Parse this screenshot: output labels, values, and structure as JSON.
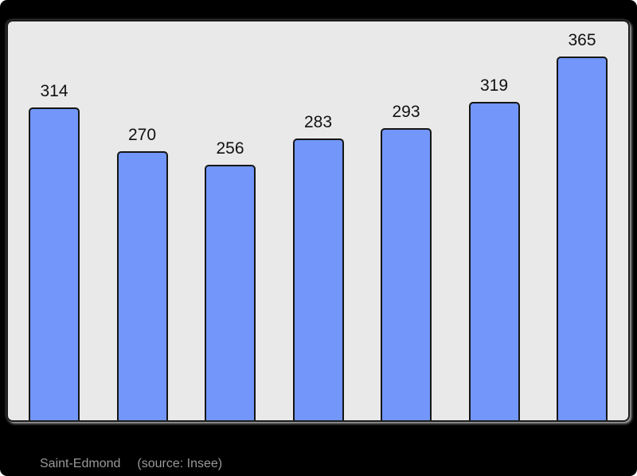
{
  "chart_data": {
    "type": "bar",
    "values": [
      314,
      270,
      256,
      283,
      293,
      319,
      365
    ],
    "bar_labels": [
      "314",
      "270",
      "256",
      "283",
      "293",
      "319",
      "365"
    ],
    "title": "",
    "xlabel": "",
    "ylabel": "",
    "ylim": [
      0,
      403
    ],
    "grid": false,
    "legend": false,
    "axes_ticks_visible": false,
    "bar_color": "#7296f9",
    "bar_border_color": "#151515",
    "value_label_color": "#111111",
    "plot_background": "#e9e9e9",
    "plot_border_color": "#1c1c1c",
    "page_background": "#000000"
  },
  "footer": {
    "title": "Saint-Edmond",
    "source": "(source: Insee)",
    "color": "#999999"
  }
}
